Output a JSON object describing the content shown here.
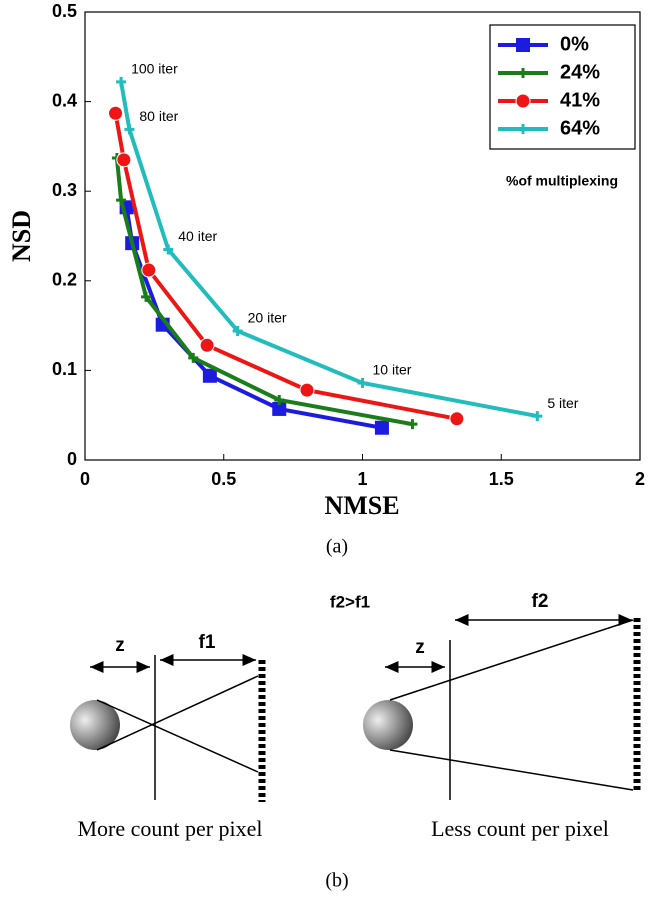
{
  "chart_data": {
    "type": "line",
    "xlabel": "NMSE",
    "ylabel": "NSD",
    "xlim": [
      0,
      2
    ],
    "xticks": [
      0,
      0.5,
      1,
      1.5,
      2
    ],
    "ylim": [
      0,
      0.5
    ],
    "yticks": [
      0,
      0.1,
      0.2,
      0.3,
      0.4,
      0.5
    ],
    "grid": false,
    "legend": "upper right",
    "annotation": "%of multiplexing",
    "series": [
      {
        "name": "0%",
        "color": "#1c1ce0",
        "marker": "square",
        "x": [
          0.15,
          0.17,
          0.28,
          0.45,
          0.7,
          1.07
        ],
        "values": [
          0.282,
          0.242,
          0.151,
          0.094,
          0.057,
          0.036
        ]
      },
      {
        "name": "24%",
        "color": "#1a7d1a",
        "marker": "plus",
        "x": [
          0.115,
          0.13,
          0.22,
          0.39,
          0.7,
          1.18
        ],
        "values": [
          0.337,
          0.29,
          0.182,
          0.114,
          0.067,
          0.04
        ]
      },
      {
        "name": "41%",
        "color": "#ee1515",
        "marker": "circle",
        "x": [
          0.11,
          0.14,
          0.23,
          0.44,
          0.8,
          1.34
        ],
        "values": [
          0.387,
          0.335,
          0.212,
          0.128,
          0.078,
          0.046
        ]
      },
      {
        "name": "64%",
        "color": "#22bcbc",
        "marker": "plus",
        "x": [
          0.13,
          0.16,
          0.3,
          0.55,
          1.0,
          1.63
        ],
        "values": [
          0.422,
          0.369,
          0.235,
          0.144,
          0.086,
          0.049
        ],
        "point_labels": [
          "100 iter",
          "80 iter",
          "40 iter",
          "20 iter",
          "10 iter",
          "5 iter"
        ]
      }
    ]
  },
  "panel_a_label": "(a)",
  "diagram": {
    "condition": "f2>f1",
    "left": {
      "z_label": "z",
      "f_label": "f1",
      "caption": "More count per pixel"
    },
    "right": {
      "z_label": "z",
      "f_label": "f2",
      "caption": "Less count per pixel"
    },
    "label": "(b)"
  }
}
